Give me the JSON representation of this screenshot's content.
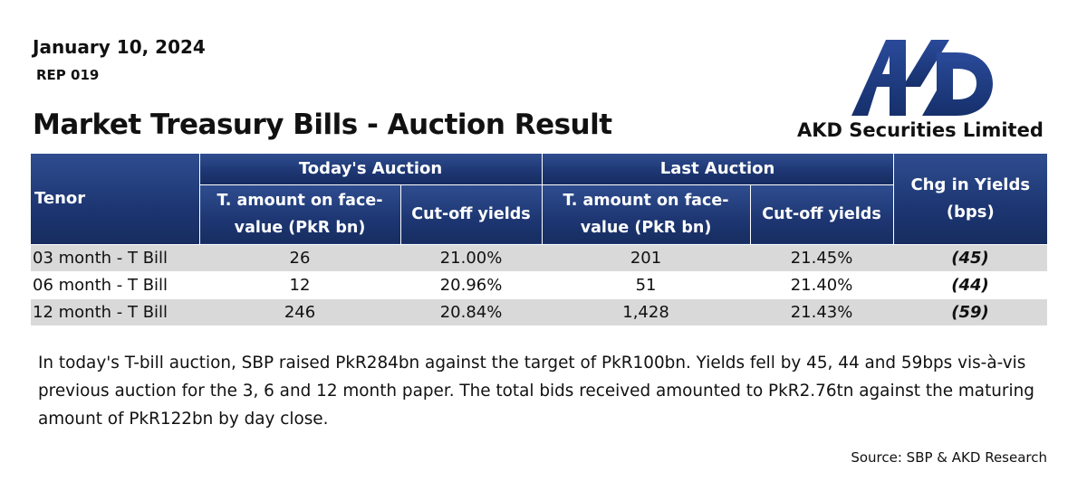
{
  "header": {
    "date": "January 10, 2024",
    "report_id": "REP 019",
    "title": "Market Treasury Bills - Auction Result",
    "company": "AKD Securities Limited",
    "logo_text": "AKD"
  },
  "table": {
    "tenor_label": "Tenor",
    "todays_auction": "Today's Auction",
    "last_auction": "Last Auction",
    "chg_in_yields": "Chg in Yields (bps)",
    "amount_label": "T. amount on face-value (PkR bn)",
    "yield_label": "Cut-off yields",
    "rows": [
      {
        "tenor": "03 month - T Bill",
        "today_amount": "26",
        "today_yield": "21.00%",
        "last_amount": "201",
        "last_yield": "21.45%",
        "chg": "(45)"
      },
      {
        "tenor": "06 month - T Bill",
        "today_amount": "12",
        "today_yield": "20.96%",
        "last_amount": "51",
        "last_yield": "21.40%",
        "chg": "(44)"
      },
      {
        "tenor": "12 month - T Bill",
        "today_amount": "246",
        "today_yield": "20.84%",
        "last_amount": "1,428",
        "last_yield": "21.43%",
        "chg": "(59)"
      }
    ]
  },
  "summary": "In today's T-bill auction, SBP raised PkR284bn against the target of PkR100bn. Yields fell by 45, 44 and 59bps vis-à-vis previous auction for the 3, 6 and 12 month paper. The total bids received amounted to PkR2.76tn against the maturing amount of PkR122bn by day close.",
  "source": "Source: SBP & AKD Research",
  "colors": {
    "header_blue": "#1d3672",
    "logo_blue": "#1f3a82",
    "row_shade": "#d9d9d9"
  }
}
